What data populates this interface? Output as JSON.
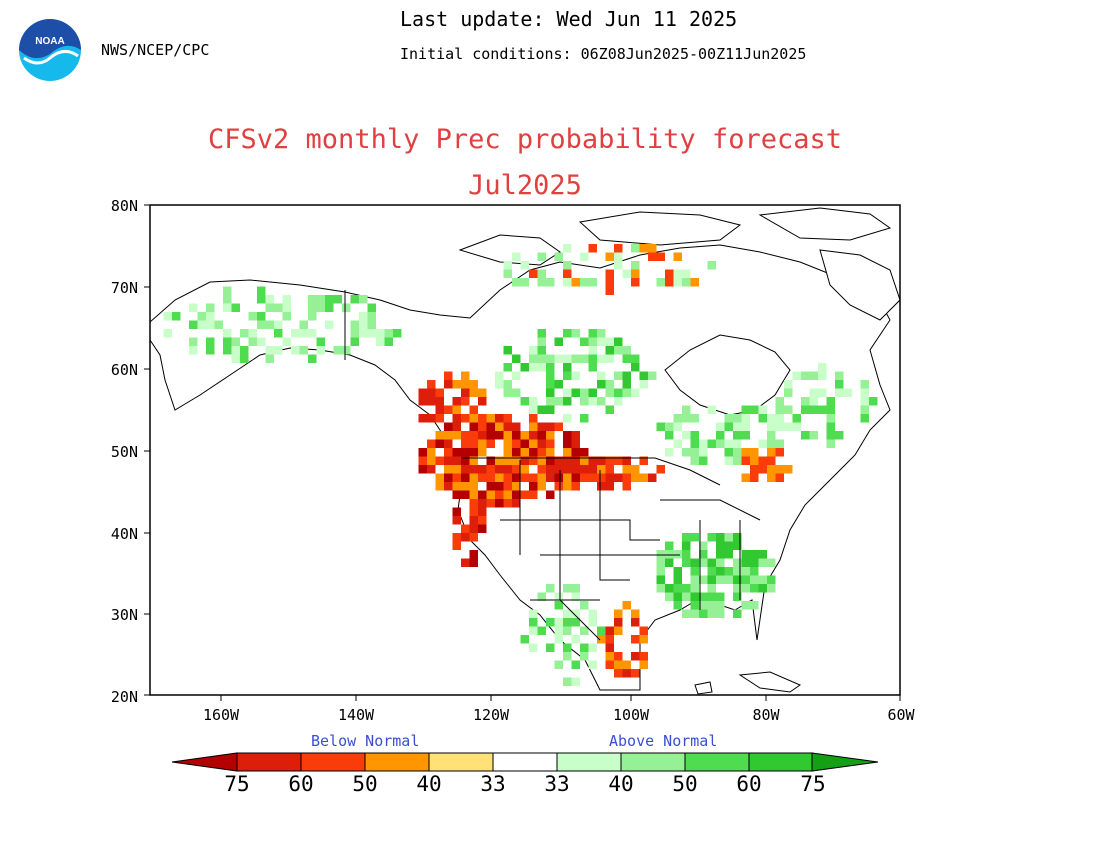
{
  "header": {
    "agency": "NWS/NCEP/CPC",
    "last_update": "Last update: Wed Jun 11 2025",
    "initial_conditions": "Initial conditions: 06Z08Jun2025-00Z11Jun2025"
  },
  "title": {
    "line1": "CFSv2 monthly Prec probability forecast",
    "line2": "Jul2025"
  },
  "axes": {
    "lat_labels": [
      "80N",
      "70N",
      "60N",
      "50N",
      "40N",
      "30N",
      "20N"
    ],
    "lon_labels": [
      "160W",
      "140W",
      "120W",
      "100W",
      "80W",
      "60W"
    ]
  },
  "legend": {
    "below_label": "Below Normal",
    "above_label": "Above Normal",
    "values": [
      "75",
      "60",
      "50",
      "40",
      "33",
      "33",
      "40",
      "50",
      "60",
      "75"
    ],
    "below_colors": [
      "#b40000",
      "#dc1e0a",
      "#fa3c0a",
      "#ff9600",
      "#ffe178"
    ],
    "above_colors": [
      "#c8ffc8",
      "#96f096",
      "#50dc50",
      "#32c832",
      "#14a014"
    ]
  },
  "colors": {
    "title": "#e04040",
    "legend_heading": "#3a4fd0",
    "noaa_blue": "#1e4fa8",
    "noaa_cyan": "#16b9ec"
  },
  "icons": {
    "logo": "noaa-logo"
  }
}
